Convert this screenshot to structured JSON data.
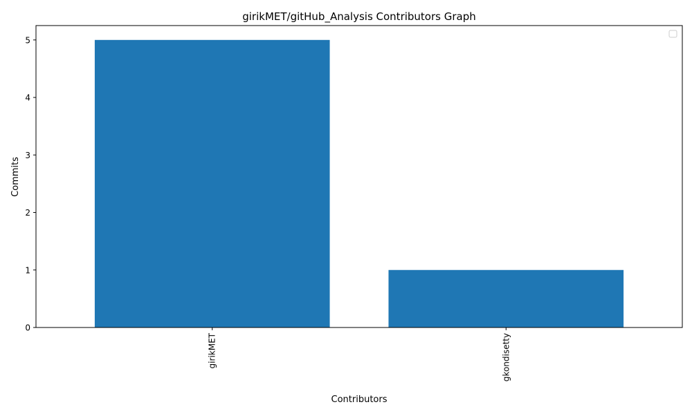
{
  "chart_data": {
    "type": "bar",
    "title": "girikMET/gitHub_Analysis Contributors Graph",
    "xlabel": "Contributors",
    "ylabel": "Commits",
    "categories": [
      "girikMET",
      "gkondisetty"
    ],
    "values": [
      5,
      1
    ],
    "ylim": [
      0,
      5.25
    ],
    "yticks": [
      0,
      1,
      2,
      3,
      4,
      5
    ],
    "bar_color": "#1f77b4",
    "legend": "top-right",
    "legend_entries": [],
    "grid": false,
    "xtick_rotation": "vertical"
  }
}
